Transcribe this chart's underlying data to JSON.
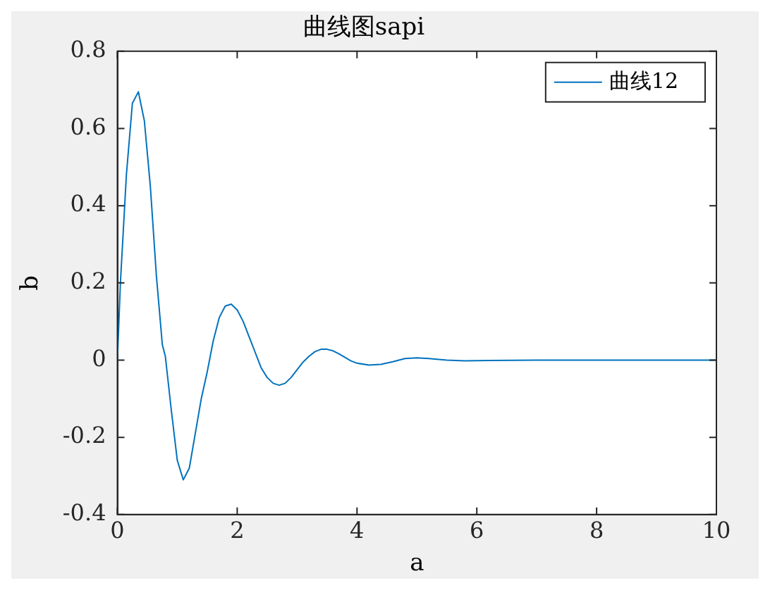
{
  "chart_data": {
    "type": "line",
    "title": "曲线图sapi",
    "xlabel": "a",
    "ylabel": "b",
    "xlim": [
      0,
      10
    ],
    "xticks": [
      0,
      2,
      4,
      6,
      8,
      10
    ],
    "ylim": [
      -0.4,
      0.8
    ],
    "yticks": [
      -0.4,
      -0.2,
      0,
      0.2,
      0.4,
      0.6,
      0.8
    ],
    "legend": "top right",
    "marker": "none",
    "line_style": "solid",
    "series": [
      {
        "name": "曲线12",
        "color": "#0072bd",
        "x": [
          0,
          0.05,
          0.15,
          0.25,
          0.35,
          0.45,
          0.55,
          0.65,
          0.75,
          0.8,
          0.9,
          1.0,
          1.1,
          1.2,
          1.3,
          1.4,
          1.5,
          1.6,
          1.7,
          1.8,
          1.9,
          2.0,
          2.1,
          2.2,
          2.3,
          2.4,
          2.5,
          2.6,
          2.7,
          2.8,
          2.9,
          3.0,
          3.1,
          3.2,
          3.3,
          3.4,
          3.5,
          3.6,
          3.7,
          3.8,
          3.9,
          4.0,
          4.2,
          4.4,
          4.6,
          4.8,
          5.0,
          5.2,
          5.5,
          5.8,
          6.2,
          7,
          8,
          9,
          10
        ],
        "values": [
          0,
          0.2,
          0.48,
          0.665,
          0.695,
          0.62,
          0.45,
          0.22,
          0.04,
          0.01,
          -0.13,
          -0.26,
          -0.31,
          -0.28,
          -0.19,
          -0.1,
          -0.03,
          0.05,
          0.11,
          0.14,
          0.145,
          0.13,
          0.1,
          0.06,
          0.02,
          -0.02,
          -0.045,
          -0.06,
          -0.065,
          -0.06,
          -0.045,
          -0.025,
          -0.005,
          0.01,
          0.022,
          0.028,
          0.028,
          0.024,
          0.016,
          0.007,
          -0.002,
          -0.008,
          -0.013,
          -0.011,
          -0.004,
          0.004,
          0.006,
          0.004,
          0,
          -0.002,
          -0.001,
          0,
          0,
          0,
          0
        ]
      }
    ]
  }
}
